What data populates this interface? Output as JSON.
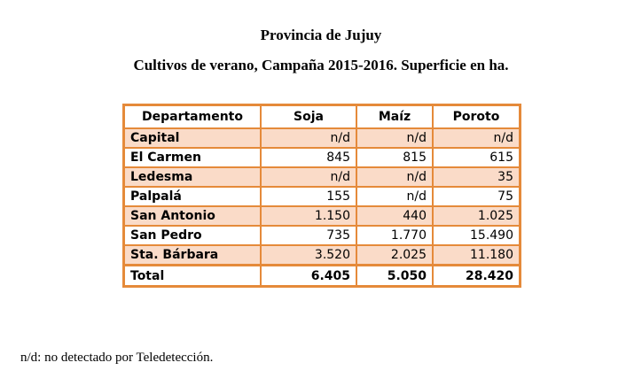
{
  "title": "Provincia de Jujuy",
  "subtitle": "Cultivos de verano, Campaña 2015-2016. Superficie en ha.",
  "table": {
    "headers": [
      "Departamento",
      "Soja",
      "Maíz",
      "Poroto"
    ],
    "rows": [
      {
        "name": "Capital",
        "soja": "n/d",
        "maiz": "n/d",
        "poroto": "n/d"
      },
      {
        "name": "El Carmen",
        "soja": "845",
        "maiz": "815",
        "poroto": "615"
      },
      {
        "name": "Ledesma",
        "soja": "n/d",
        "maiz": "n/d",
        "poroto": "35"
      },
      {
        "name": "Palpalá",
        "soja": "155",
        "maiz": "n/d",
        "poroto": "75"
      },
      {
        "name": "San Antonio",
        "soja": "1.150",
        "maiz": "440",
        "poroto": "1.025"
      },
      {
        "name": "San Pedro",
        "soja": "735",
        "maiz": "1.770",
        "poroto": "15.490"
      },
      {
        "name": "Sta. Bárbara",
        "soja": "3.520",
        "maiz": "2.025",
        "poroto": "11.180"
      }
    ],
    "total": {
      "name": "Total",
      "soja": "6.405",
      "maiz": "5.050",
      "poroto": "28.420"
    }
  },
  "footnote": "n/d: no detectado por Teledetección.",
  "colors": {
    "border": "#e58a3a",
    "shade": "#fadbc8"
  }
}
